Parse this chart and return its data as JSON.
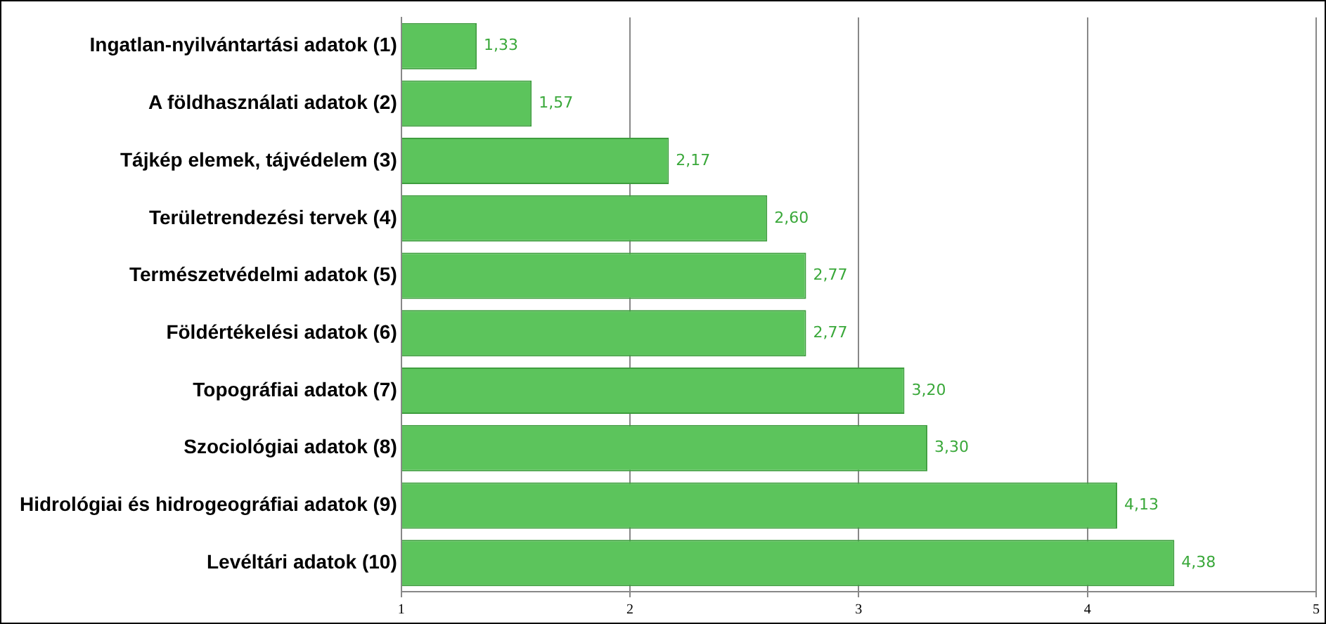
{
  "chart_data": {
    "type": "bar",
    "orientation": "horizontal",
    "categories": [
      "Ingatlan-nyilvántartási adatok (1)",
      "A földhasználati adatok (2)",
      "Tájkép elemek, tájvédelem (3)",
      "Területrendezési tervek (4)",
      "Természetvédelmi adatok (5)",
      "Földértékelési adatok (6)",
      "Topográfiai adatok (7)",
      "Szociológiai adatok (8)",
      "Hidrológiai és hidrogeográfiai adatok (9)",
      "Levéltári adatok (10)"
    ],
    "values": [
      1.33,
      1.57,
      2.17,
      2.6,
      2.77,
      2.77,
      3.2,
      3.3,
      4.13,
      4.38
    ],
    "value_labels": [
      "1,33",
      "1,57",
      "2,17",
      "2,60",
      "2,77",
      "2,77",
      "3,20",
      "3,30",
      "4,13",
      "4,38"
    ],
    "color": "#5cc45c",
    "xlim": [
      1,
      5
    ],
    "xticks": [
      1,
      2,
      3,
      4,
      5
    ],
    "grid": "x",
    "legend": false
  }
}
